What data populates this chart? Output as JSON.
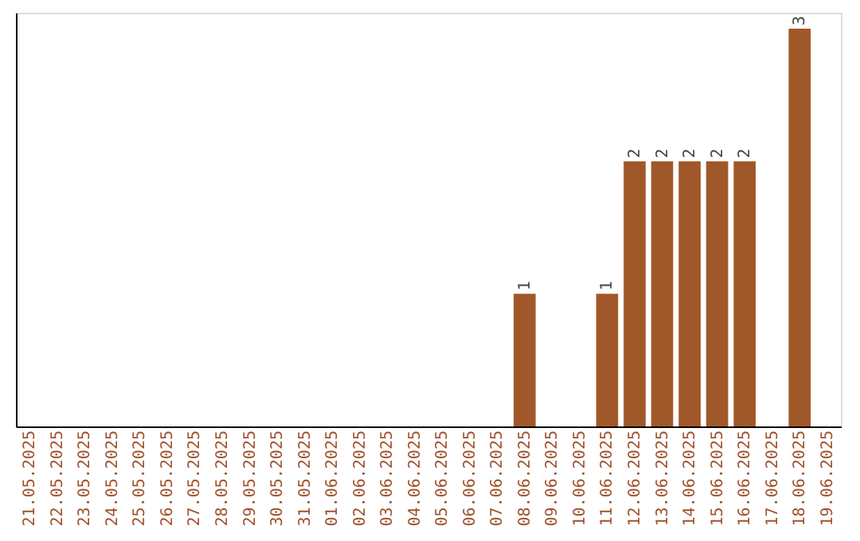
{
  "chart_data": {
    "type": "bar",
    "categories": [
      "21.05.2025",
      "22.05.2025",
      "23.05.2025",
      "24.05.2025",
      "25.05.2025",
      "26.05.2025",
      "27.05.2025",
      "28.05.2025",
      "29.05.2025",
      "30.05.2025",
      "31.05.2025",
      "01.06.2025",
      "02.06.2025",
      "03.06.2025",
      "04.06.2025",
      "05.06.2025",
      "06.06.2025",
      "07.06.2025",
      "08.06.2025",
      "09.06.2025",
      "10.06.2025",
      "11.06.2025",
      "12.06.2025",
      "13.06.2025",
      "14.06.2025",
      "15.06.2025",
      "16.06.2025",
      "17.06.2025",
      "18.06.2025",
      "19.06.2025"
    ],
    "values": [
      null,
      null,
      null,
      null,
      null,
      null,
      null,
      null,
      null,
      null,
      null,
      null,
      null,
      null,
      null,
      null,
      null,
      null,
      1,
      null,
      null,
      1,
      2,
      2,
      2,
      2,
      2,
      null,
      3,
      null
    ],
    "color": "#a0582a",
    "ylim": [
      0,
      3.12
    ],
    "data_labels": true,
    "tick_labels": "x",
    "grid": false
  }
}
